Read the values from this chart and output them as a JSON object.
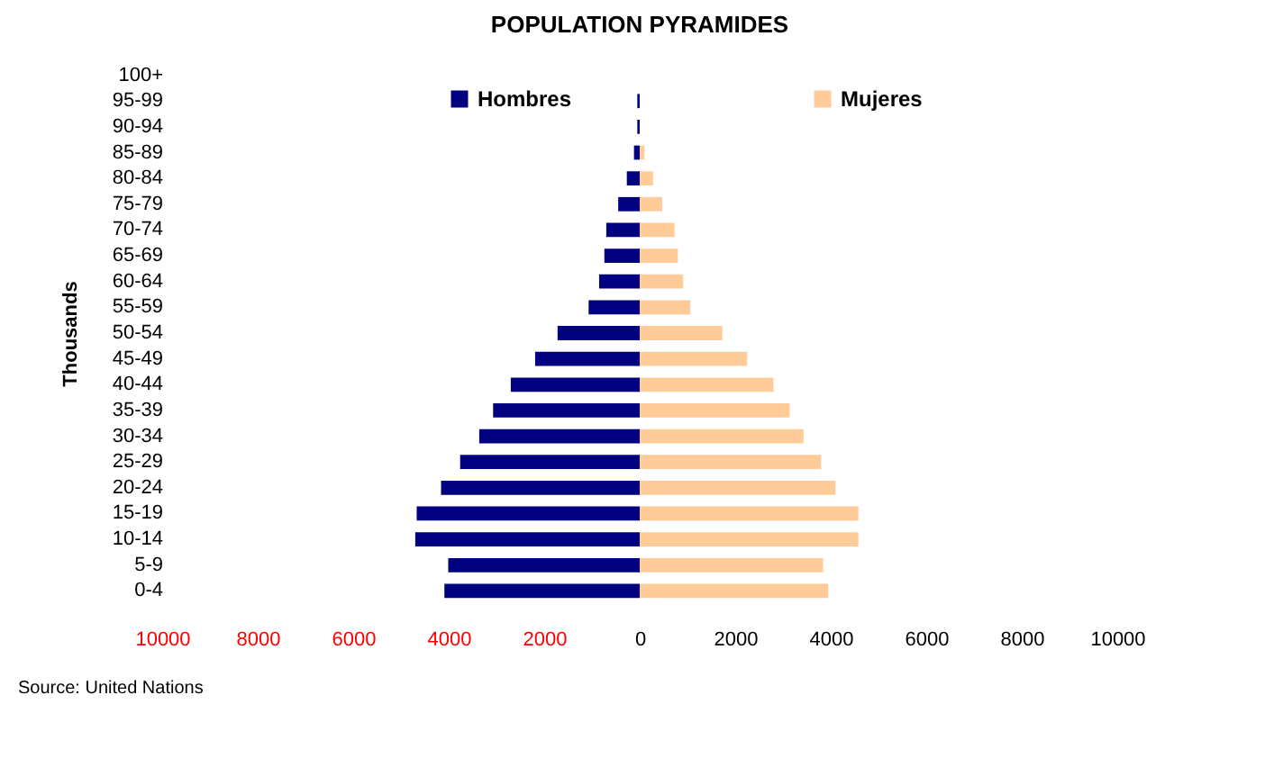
{
  "chart_data": {
    "type": "bar",
    "orientation": "horizontal",
    "title": "POPULATION PYRAMIDES",
    "ylabel": "Thousands",
    "categories": [
      "100+",
      "95-99",
      "90-94",
      "85-89",
      "80-84",
      "75-79",
      "70-74",
      "65-69",
      "60-64",
      "55-59",
      "50-54",
      "45-49",
      "40-44",
      "35-39",
      "30-34",
      "25-29",
      "20-24",
      "15-19",
      "10-14",
      "5-9",
      "0-4"
    ],
    "series": [
      {
        "name": "Hombres",
        "color": "#000080",
        "values": [
          0,
          -50,
          -50,
          -120,
          -270,
          -450,
          -700,
          -740,
          -850,
          -1070,
          -1720,
          -2190,
          -2700,
          -3070,
          -3360,
          -3760,
          -4160,
          -4670,
          -4700,
          -4010,
          -4090
        ]
      },
      {
        "name": "Mujeres",
        "color": "#ffcc99",
        "values": [
          0,
          0,
          0,
          100,
          280,
          470,
          730,
          800,
          910,
          1060,
          1730,
          2250,
          2800,
          3140,
          3430,
          3800,
          4100,
          4580,
          4580,
          3840,
          3950
        ]
      }
    ],
    "xlim": [
      -10000,
      10000
    ],
    "xticks": [
      {
        "value": -10000,
        "label": "10000"
      },
      {
        "value": -8000,
        "label": "8000"
      },
      {
        "value": -6000,
        "label": "6000"
      },
      {
        "value": -4000,
        "label": "4000"
      },
      {
        "value": -2000,
        "label": "2000"
      },
      0,
      2000,
      4000,
      6000,
      8000,
      10000
    ],
    "legend": "top",
    "stacked": true,
    "grid": false,
    "annotations": [
      "Source: United Nations"
    ]
  }
}
